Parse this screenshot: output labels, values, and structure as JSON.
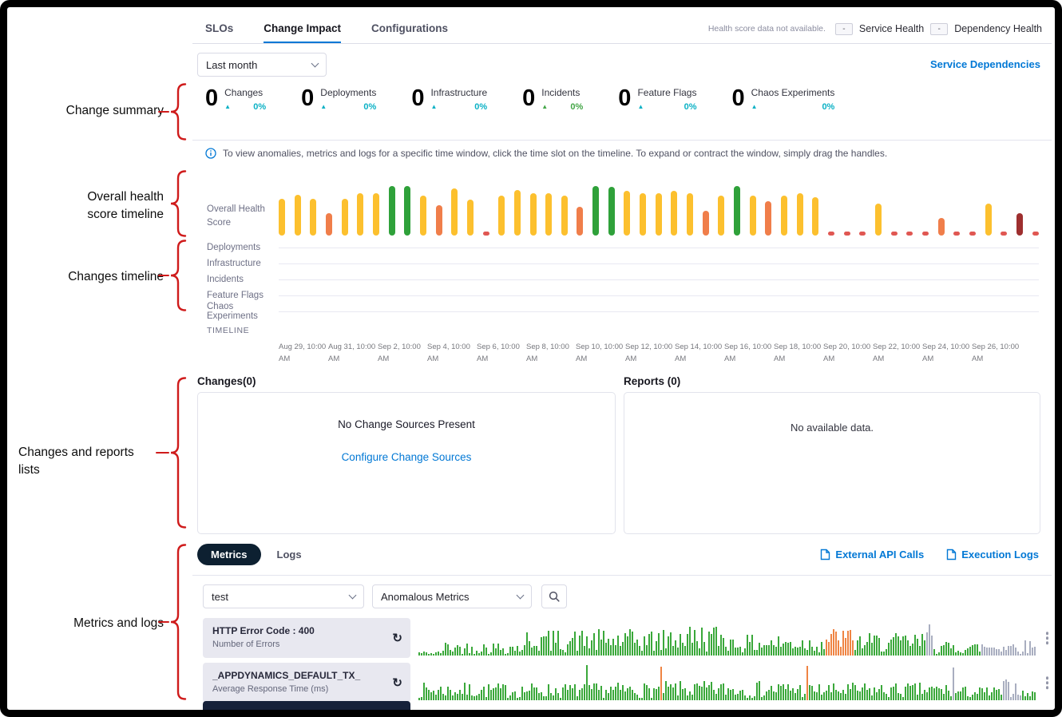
{
  "annotations": {
    "items": [
      {
        "lines": [
          "Change summary"
        ]
      },
      {
        "lines": [
          "Overall health",
          "score timeline"
        ]
      },
      {
        "lines": [
          "Changes timeline"
        ]
      },
      {
        "lines": [
          "Changes and reports",
          "lists"
        ]
      },
      {
        "lines": [
          "Metrics and logs"
        ]
      }
    ]
  },
  "header": {
    "tabs": [
      {
        "label": "SLOs",
        "active": false
      },
      {
        "label": "Change Impact",
        "active": true
      },
      {
        "label": "Configurations",
        "active": false
      }
    ],
    "health_note": "Health score data not available.",
    "service_health": {
      "value": "-",
      "label": "Service Health"
    },
    "dependency_health": {
      "value": "-",
      "label": "Dependency Health"
    }
  },
  "toolbar": {
    "time_range_value": "Last month",
    "service_dependencies_link": "Service Dependencies"
  },
  "change_summary": {
    "items": [
      {
        "value": "0",
        "label": "Changes",
        "delta": "0%",
        "color": "#0bb1c5"
      },
      {
        "value": "0",
        "label": "Deployments",
        "delta": "0%",
        "color": "#0bb1c5"
      },
      {
        "value": "0",
        "label": "Infrastructure",
        "delta": "0%",
        "color": "#0bb1c5"
      },
      {
        "value": "0",
        "label": "Incidents",
        "delta": "0%",
        "color": "#44a648"
      },
      {
        "value": "0",
        "label": "Feature Flags",
        "delta": "0%",
        "color": "#0bb1c5"
      },
      {
        "value": "0",
        "label": "Chaos Experiments",
        "delta": "0%",
        "color": "#0bb1c5"
      }
    ]
  },
  "info_banner": "To view anomalies, metrics and logs for a specific time window, click the time slot on the timeline. To expand or contract the window, simply drag the handles.",
  "timeline": {
    "health_label_lines": [
      "Overall Health",
      "Score"
    ],
    "rows": [
      "Deployments",
      "Infrastructure",
      "Incidents",
      "Feature Flags",
      "Chaos Experiments"
    ],
    "axis_label": "TIMELINE",
    "ticks": [
      {
        "line1": "Aug 29, 10:00",
        "line2": "AM"
      },
      {
        "line1": "Aug 31, 10:00",
        "line2": "AM"
      },
      {
        "line1": "Sep 2, 10:00",
        "line2": "AM"
      },
      {
        "line1": "Sep 4, 10:00",
        "line2": "AM"
      },
      {
        "line1": "Sep 6, 10:00",
        "line2": "AM"
      },
      {
        "line1": "Sep 8, 10:00",
        "line2": "AM"
      },
      {
        "line1": "Sep 10, 10:00",
        "line2": "AM"
      },
      {
        "line1": "Sep 12, 10:00",
        "line2": "AM"
      },
      {
        "line1": "Sep 14, 10:00",
        "line2": "AM"
      },
      {
        "line1": "Sep 16, 10:00",
        "line2": "AM"
      },
      {
        "line1": "Sep 18, 10:00",
        "line2": "AM"
      },
      {
        "line1": "Sep 20, 10:00",
        "line2": "AM"
      },
      {
        "line1": "Sep 22, 10:00",
        "line2": "AM"
      },
      {
        "line1": "Sep 24, 10:00",
        "line2": "AM"
      },
      {
        "line1": "Sep 26, 10:00",
        "line2": "AM"
      }
    ]
  },
  "changes_panel": {
    "title": "Changes(0)",
    "empty_text": "No Change Sources Present",
    "link_text": "Configure Change Sources"
  },
  "reports_panel": {
    "title": "Reports (0)",
    "empty_text": "No available data."
  },
  "metrics_section": {
    "tabs": [
      {
        "label": "Metrics",
        "active": true
      },
      {
        "label": "Logs",
        "active": false
      }
    ],
    "links": [
      {
        "label": "External API Calls"
      },
      {
        "label": "Execution Logs"
      }
    ],
    "filter_service": "test",
    "filter_metric": "Anomalous Metrics",
    "rows": [
      {
        "title": "HTTP Error Code : 400",
        "subtitle": "Number of Errors"
      },
      {
        "title": "_APPDYNAMICS_DEFAULT_TX_",
        "subtitle": "Average Response Time (ms)"
      }
    ]
  },
  "chart_data": [
    {
      "type": "bar",
      "name": "overall_health_score",
      "title": "Overall Health Score",
      "ylim": [
        0,
        100
      ],
      "x_range": [
        "Aug 29, 10:00 AM",
        "Sep 26, 10:00 AM"
      ],
      "heights": [
        75,
        82,
        75,
        45,
        75,
        85,
        85,
        100,
        100,
        80,
        62,
        95,
        72,
        8,
        80,
        92,
        85,
        85,
        80,
        58,
        100,
        98,
        90,
        85,
        85,
        90,
        85,
        50,
        80,
        100,
        80,
        70,
        80,
        85,
        78,
        8,
        8,
        8,
        65,
        8,
        8,
        8,
        35,
        8,
        8,
        65,
        8,
        45,
        8
      ],
      "palette": [
        "y",
        "y",
        "y",
        "o",
        "y",
        "y",
        "y",
        "g",
        "g",
        "y",
        "o",
        "y",
        "y",
        "r",
        "y",
        "y",
        "y",
        "y",
        "y",
        "o",
        "g",
        "g",
        "y",
        "y",
        "y",
        "y",
        "y",
        "o",
        "y",
        "g",
        "y",
        "o",
        "y",
        "y",
        "y",
        "r",
        "r",
        "r",
        "y",
        "r",
        "r",
        "r",
        "o",
        "r",
        "r",
        "y",
        "r",
        "d",
        "r"
      ]
    },
    {
      "type": "bar",
      "name": "http_error_code_400_sparkline",
      "seed": 42,
      "segments": [
        {
          "n": 10,
          "c": "green",
          "lo": 2,
          "hi": 12
        },
        {
          "n": 35,
          "c": "green",
          "lo": 4,
          "hi": 40
        },
        {
          "n": 60,
          "c": "green",
          "lo": 8,
          "hi": 75
        },
        {
          "n": 25,
          "c": "green",
          "lo": 10,
          "hi": 90
        },
        {
          "n": 40,
          "c": "green",
          "lo": 8,
          "hi": 60
        },
        {
          "n": 12,
          "c": "orange",
          "lo": 15,
          "hi": 80
        },
        {
          "n": 30,
          "c": "green",
          "lo": 8,
          "hi": 65
        },
        {
          "n": 3,
          "c": "gray",
          "lo": 50,
          "hi": 95
        },
        {
          "n": 20,
          "c": "green",
          "lo": 5,
          "hi": 40
        },
        {
          "n": 23,
          "c": "gray",
          "lo": 5,
          "hi": 45
        }
      ]
    },
    {
      "type": "bar",
      "name": "appdynamics_default_tx_sparkline",
      "seed": 7,
      "segments": [
        {
          "n": 70,
          "c": "green",
          "lo": 6,
          "hi": 50
        },
        {
          "n": 1,
          "c": "green",
          "lo": 90,
          "hi": 100
        },
        {
          "n": 30,
          "c": "green",
          "lo": 6,
          "hi": 50
        },
        {
          "n": 1,
          "c": "orange",
          "lo": 80,
          "hi": 95
        },
        {
          "n": 60,
          "c": "green",
          "lo": 6,
          "hi": 55
        },
        {
          "n": 1,
          "c": "orange",
          "lo": 85,
          "hi": 100
        },
        {
          "n": 60,
          "c": "green",
          "lo": 6,
          "hi": 50
        },
        {
          "n": 1,
          "c": "gray",
          "lo": 85,
          "hi": 95
        },
        {
          "n": 20,
          "c": "green",
          "lo": 5,
          "hi": 40
        },
        {
          "n": 8,
          "c": "gray",
          "lo": 10,
          "hi": 60
        },
        {
          "n": 6,
          "c": "green",
          "lo": 5,
          "hi": 30
        }
      ]
    }
  ],
  "icons": {
    "trend_up": "▲",
    "refresh": "↻",
    "more_menu": "⋮",
    "chevron_down": "⌄"
  },
  "colors": {
    "accent_blue": "#0278d5",
    "annotation_red": "#cf1b1b",
    "teal": "#0bb1c5",
    "incident_green": "#44a648",
    "bar_yellow": "#fcc02e",
    "bar_green": "#2fa13a",
    "bar_orange": "#f07e4a",
    "bar_red": "#e05752",
    "bar_darkred": "#9e2f2f",
    "spark_green": "#3aa83a",
    "spark_orange": "#ef8443",
    "spark_gray": "#a9aec0",
    "metrics_pill_bg": "#0d2031",
    "dark_strip_bg": "#16213a"
  }
}
